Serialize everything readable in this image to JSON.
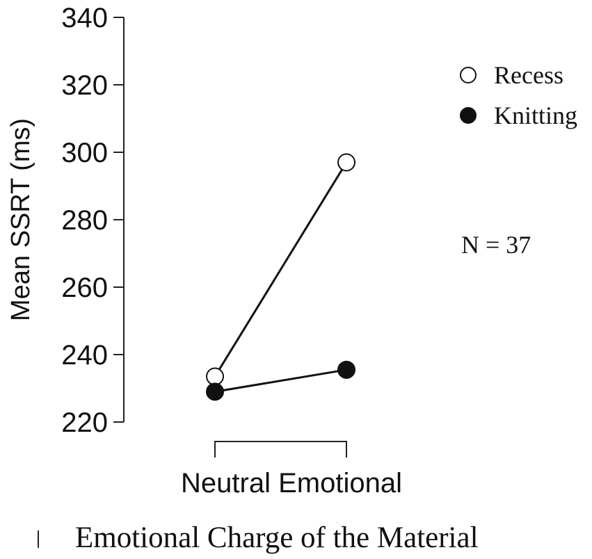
{
  "chart_data": {
    "type": "line",
    "x_label_text": "Neutral Emotional",
    "categories": [
      "Neutral",
      "Emotional"
    ],
    "xlabel": "Emotional Charge of the Material",
    "ylabel": "Mean SSRT (ms)",
    "ylim": [
      220,
      340
    ],
    "yticks": [
      220,
      240,
      260,
      280,
      300,
      320,
      340
    ],
    "grid": false,
    "legend_position": "top-right",
    "annotation": "N = 37",
    "series": [
      {
        "name": "Recess",
        "marker": "open-circle",
        "values": [
          233.5,
          297
        ]
      },
      {
        "name": "Knitting",
        "marker": "filled-circle",
        "values": [
          229,
          235.5
        ]
      }
    ]
  },
  "colors": {
    "line": "#111111",
    "marker_open_fill": "#ffffff",
    "marker_filled_fill": "#111111"
  }
}
